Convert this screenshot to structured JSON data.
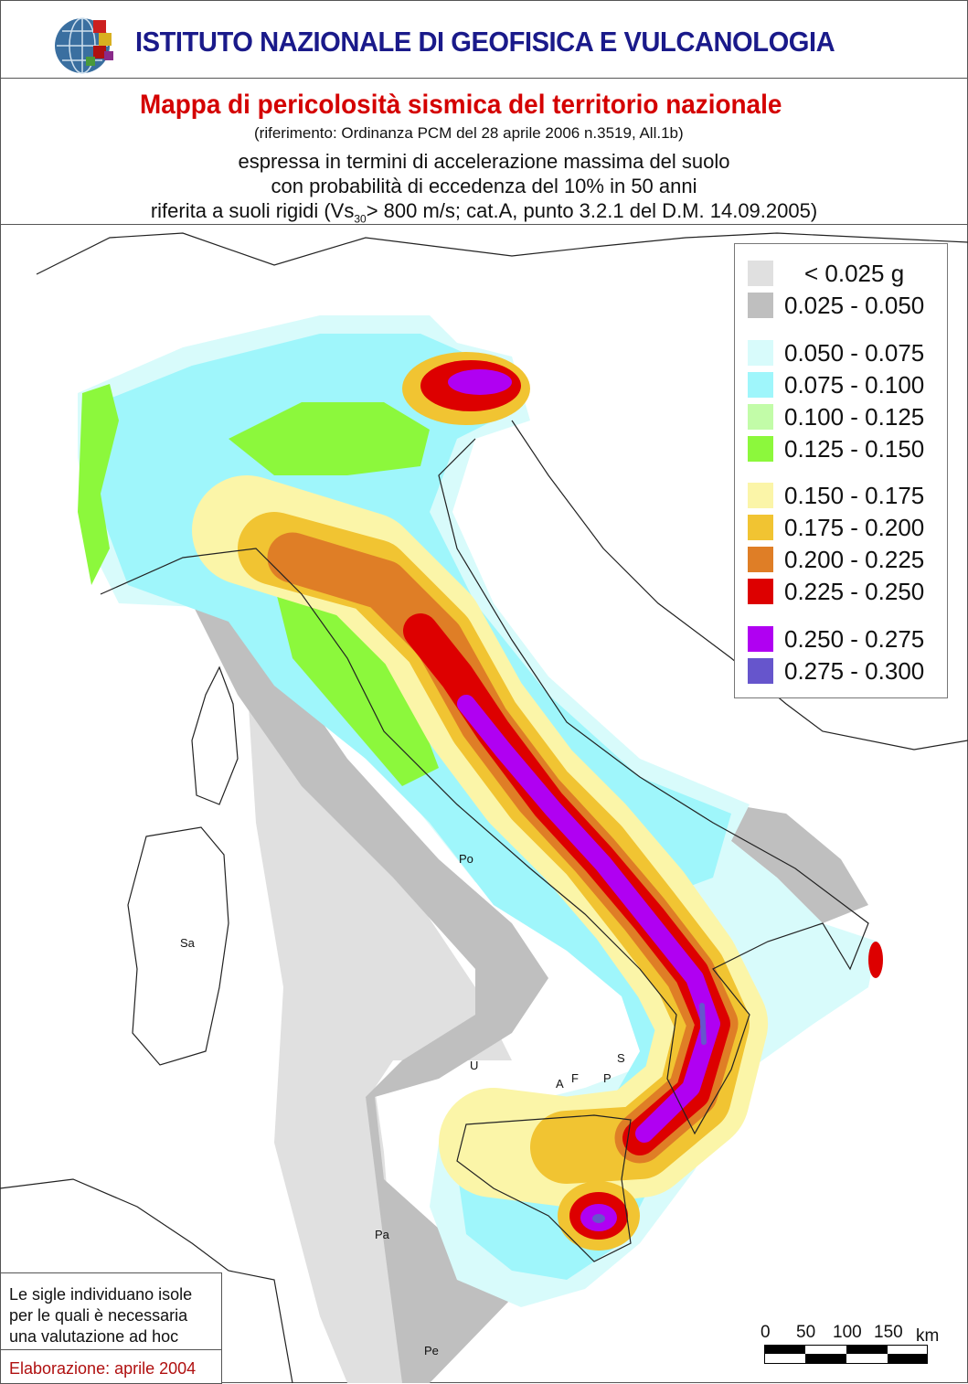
{
  "header": {
    "institute": "ISTITUTO NAZIONALE DI GEOFISICA E VULCANOLOGIA",
    "logo_icon": "ingv-globe-logo"
  },
  "titles": {
    "main": "Mappa di pericolosità sismica del territorio nazionale",
    "reference": "(riferimento: Ordinanza PCM del 28 aprile 2006 n.3519, All.1b)",
    "line1": "espressa in termini di accelerazione massima del suolo",
    "line2": "con probabilità di eccedenza del 10% in 50 anni",
    "line3_pre": "riferita a suoli rigidi (Vs",
    "line3_sub": "30",
    "line3_post": "> 800 m/s; cat.A, punto 3.2.1 del D.M. 14.09.2005)"
  },
  "legend": {
    "items": [
      {
        "label": "< 0.025 g",
        "color": "#e0e0e0"
      },
      {
        "label": "0.025 - 0.050",
        "color": "#bfbfbf"
      },
      {
        "label": "0.050 - 0.075",
        "color": "#d8fbfb"
      },
      {
        "label": "0.075 - 0.100",
        "color": "#9ff6fb"
      },
      {
        "label": "0.100 - 0.125",
        "color": "#c2fca8"
      },
      {
        "label": "0.125 - 0.150",
        "color": "#8cf83c"
      },
      {
        "label": "0.150 - 0.175",
        "color": "#fbf5a8"
      },
      {
        "label": "0.175 - 0.200",
        "color": "#f1c432"
      },
      {
        "label": "0.200 - 0.225",
        "color": "#df7e26"
      },
      {
        "label": "0.225 - 0.250",
        "color": "#dd0000"
      },
      {
        "label": "0.250 - 0.275",
        "color": "#b000f2"
      },
      {
        "label": "0.275 - 0.300",
        "color": "#6655cc"
      }
    ]
  },
  "islands": [
    "Po",
    "Sa",
    "U",
    "S",
    "A",
    "F",
    "P",
    "Pa",
    "Pe"
  ],
  "note": {
    "text_lines": [
      "Le sigle individuano isole",
      "per le quali è necessaria",
      "una valutazione ad hoc"
    ],
    "date": "Elaborazione: aprile 2004"
  },
  "scale": {
    "ticks": [
      "0",
      "50",
      "100",
      "150"
    ],
    "unit": "km"
  }
}
